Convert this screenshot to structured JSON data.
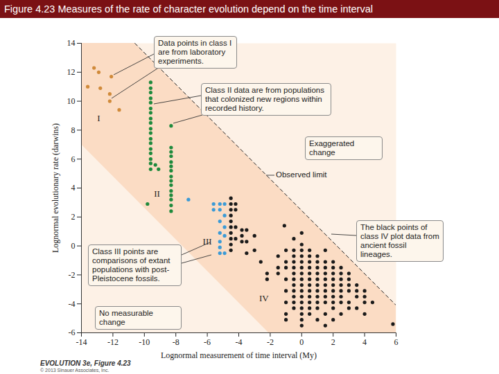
{
  "chart_data": {
    "type": "scatter",
    "title": "Figure 4.23 Measures of the rate of character evolution depend on the time interval",
    "x_label": "Lognormal measurement of time interval (My)",
    "y_label": "Lognormal evolutionary rate (darwins)",
    "xlim": [
      -14,
      6
    ],
    "ylim": [
      -6,
      14
    ],
    "xticks": [
      -14,
      -12,
      -10,
      -8,
      -6,
      -4,
      -2,
      0,
      2,
      4,
      6
    ],
    "yticks": [
      -6,
      -4,
      -2,
      0,
      2,
      4,
      6,
      8,
      10,
      12,
      14
    ],
    "grid": false,
    "marker": "circle",
    "series": [
      {
        "name": "I",
        "color": "#d08a3a",
        "x": [
          -13.2,
          -12.9,
          -12.1,
          -13.6,
          -12.8,
          -12.2,
          -12.2,
          -11.6
        ],
        "values": [
          12.3,
          12.0,
          11.7,
          11.0,
          10.9,
          10.5,
          10.0,
          9.4
        ]
      },
      {
        "name": "II",
        "color": "#1e8a3c",
        "x": [
          -9.6,
          -9.6,
          -9.6,
          -9.6,
          -9.6,
          -9.6,
          -9.6,
          -9.6,
          -9.6,
          -9.6,
          -9.6,
          -9.6,
          -9.6,
          -9.6,
          -9.6,
          -9.6,
          -9.6,
          -9.6,
          -9.3,
          -9.1,
          -9.8,
          -8.3,
          -8.3,
          -8.3,
          -8.3,
          -8.3,
          -8.3,
          -8.3,
          -8.3,
          -8.3,
          -8.3,
          -8.3,
          -8.3,
          -8.3,
          -8.3,
          -8.3
        ],
        "values": [
          11.3,
          10.9,
          10.6,
          10.2,
          9.9,
          9.5,
          9.2,
          8.8,
          8.5,
          8.1,
          7.8,
          7.4,
          7.1,
          6.7,
          6.4,
          6.0,
          5.7,
          5.3,
          5.6,
          5.3,
          2.9,
          8.3,
          6.8,
          6.5,
          6.2,
          5.8,
          5.5,
          5.2,
          4.8,
          4.5,
          4.2,
          3.8,
          3.5,
          3.2,
          2.8,
          2.4
        ]
      },
      {
        "name": "III",
        "color": "#3b9ad6",
        "x": [
          -7.2,
          -5.6,
          -5.2,
          -4.9,
          -5.6,
          -5.2,
          -4.9,
          -5.2,
          -4.9,
          -5.2,
          -4.9,
          -5.2,
          -5.2,
          -4.9,
          -5.2
        ],
        "values": [
          3.2,
          2.9,
          2.9,
          2.9,
          2.5,
          2.5,
          2.1,
          1.7,
          1.3,
          0.9,
          0.7,
          0.3,
          -0.1,
          -0.5,
          -0.5
        ]
      },
      {
        "name": "IV",
        "color": "#1a1a1a",
        "x": [
          -4.5,
          -4.5,
          -4.5,
          -4.5,
          -4.5,
          -4.5,
          -4.5,
          -4.5,
          -4.5,
          -4.5,
          -4.2,
          -4.2,
          -4.2,
          -4.2,
          -3.8,
          -3.8,
          -3.8,
          -3.5,
          -3.5,
          -3.5,
          -3,
          -3,
          -2.6,
          -2.2,
          -2.2,
          -1.5,
          -1.5,
          -1.5,
          -1.1,
          -1,
          -1,
          -1,
          -1,
          -1,
          -1,
          -1,
          -1,
          -0.5,
          -0.5,
          -0.5,
          -0.5,
          -0.5,
          -0.5,
          -0.5,
          -0.5,
          -0.5,
          -0.5,
          -0.5,
          -0.5,
          0,
          0,
          0,
          0,
          0,
          0,
          0,
          0,
          0,
          0,
          0,
          0,
          0,
          0,
          0,
          0,
          0.5,
          0.5,
          0.5,
          0.5,
          0.5,
          0.5,
          0.5,
          0.5,
          0.5,
          0.5,
          0.5,
          0.5,
          1,
          1,
          1,
          1,
          1,
          1,
          1,
          1,
          1,
          1,
          1,
          1.5,
          1.5,
          1.5,
          1.5,
          1.5,
          1.5,
          1.5,
          1.5,
          1.5,
          1.5,
          1.5,
          2,
          2,
          2,
          2,
          2,
          2,
          2,
          2,
          2,
          2,
          2.5,
          2.5,
          2.5,
          2.5,
          2.5,
          2.5,
          2.5,
          2.5,
          3,
          3,
          3,
          3,
          3,
          3,
          3.5,
          3.5,
          3.5,
          3.5,
          4,
          4,
          4,
          4,
          4.5,
          5.8
        ],
        "values": [
          3.3,
          2.9,
          2.5,
          2.1,
          1.7,
          1.3,
          0.9,
          0.5,
          0.1,
          -0.3,
          2.9,
          2.5,
          1.3,
          0.5,
          1.1,
          0.7,
          0.3,
          1.1,
          0.3,
          -0.5,
          0.7,
          -0.3,
          -1.1,
          -1.9,
          -2.3,
          -0.7,
          -1.5,
          -1.9,
          1.4,
          -0.3,
          -1.1,
          -1.5,
          -2.3,
          -3.1,
          -3.9,
          -4.7,
          -5.1,
          0.5,
          -0.3,
          -0.7,
          -1.1,
          -1.5,
          -1.9,
          -2.3,
          -2.7,
          -3.1,
          -3.5,
          -3.9,
          -4.3,
          0.9,
          0.1,
          -0.3,
          -0.7,
          -1.1,
          -1.5,
          -1.9,
          -2.3,
          -2.7,
          -3.1,
          -3.5,
          -3.9,
          -4.3,
          -4.7,
          -5.1,
          -5.5,
          -0.3,
          -0.7,
          -1.1,
          -1.5,
          -1.9,
          -2.3,
          -2.7,
          -3.1,
          -3.5,
          -3.9,
          -4.3,
          -4.7,
          -0.7,
          -1.1,
          -1.5,
          -1.9,
          -2.3,
          -2.7,
          -3.1,
          -3.5,
          -3.9,
          -4.3,
          -5.1,
          -0.3,
          -1.1,
          -1.5,
          -1.9,
          -2.3,
          -2.7,
          -3.1,
          -3.5,
          -3.9,
          -4.7,
          -5.5,
          -1.1,
          -1.5,
          -1.9,
          -2.3,
          -2.7,
          -3.1,
          -3.5,
          -3.9,
          -4.3,
          -5.1,
          -1.5,
          -1.9,
          -2.3,
          -2.7,
          -3.1,
          -3.5,
          -3.9,
          -4.7,
          -1.9,
          -2.3,
          -2.7,
          -3.1,
          -3.9,
          -4.3,
          -2.7,
          -3.1,
          -3.5,
          -4.3,
          -3.1,
          -3.5,
          -3.9,
          -4.7,
          -3.9,
          -5.4
        ]
      }
    ],
    "observed_limit": {
      "label": "Observed limit",
      "x": [
        -10.6,
        6
      ],
      "y": [
        14,
        -4.1
      ]
    },
    "lower_limit": {
      "x": [
        -14,
        -2.1
      ],
      "y": [
        7,
        -6
      ]
    },
    "annotations": [
      {
        "text": "Data points in class I are from laboratory experiments."
      },
      {
        "text": "Class II data are from populations that colonized new regions within recorded history."
      },
      {
        "text": "Exaggerated change"
      },
      {
        "text": "The black points of class IV plot data from ancient fossil lineages."
      },
      {
        "text": "Class III points are comparisons of extant populations with post-Pleistocene fossils."
      },
      {
        "text": "No measurable change"
      }
    ],
    "footer": [
      "EVOLUTION 3e, Figure 4.23",
      "© 2013 Sinauer Associates, Inc."
    ]
  }
}
